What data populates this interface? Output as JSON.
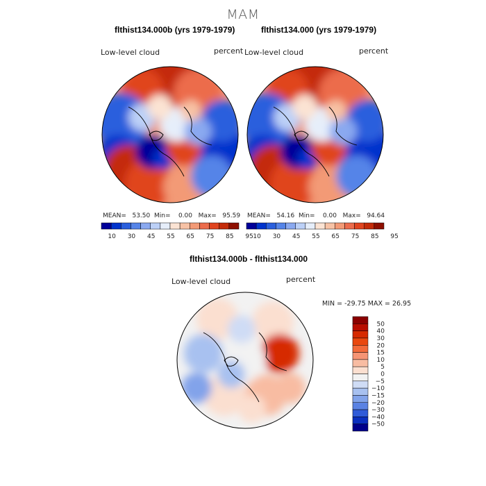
{
  "figure_title": "MAM",
  "panels": [
    {
      "title": "flthist134.000b (yrs 1979-1979)",
      "field_label": "Low-level cloud",
      "units": "percent",
      "stats": {
        "mean_label": "MEAN=",
        "mean": "53.50",
        "min_label": "Min=",
        "min": "0.00",
        "max_label": "Max=",
        "max": "95.59"
      }
    },
    {
      "title": "flthist134.000 (yrs 1979-1979)",
      "field_label": "Low-level cloud",
      "units": "percent",
      "stats": {
        "mean_label": "MEAN=",
        "mean": "54.16",
        "min_label": "Min=",
        "min": "0.00",
        "max_label": "Max=",
        "max": "94.64"
      }
    },
    {
      "title": "flthist134.000b - flthist134.000",
      "field_label": "Low-level cloud",
      "units": "percent",
      "stats_line": "MIN = -29.75 MAX =  26.95"
    }
  ],
  "chart_data": [
    {
      "type": "heatmap",
      "projection": "north-polar-stereographic",
      "title": "flthist134.000b (yrs 1979-1979)",
      "variable": "Low-level cloud",
      "units": "percent",
      "mean": 53.5,
      "min": 0.0,
      "max": 95.59,
      "colorbar": {
        "orientation": "horizontal",
        "levels": [
          10,
          30,
          45,
          55,
          65,
          75,
          85,
          95
        ],
        "colors": [
          "#000099",
          "#0033cc",
          "#2a5fdd",
          "#5584e8",
          "#8aa9f0",
          "#bcd0f7",
          "#e6eefa",
          "#fbe3d3",
          "#f7c2a5",
          "#f39a76",
          "#ec6c4c",
          "#e0441f",
          "#c42b09",
          "#8e0f00"
        ]
      }
    },
    {
      "type": "heatmap",
      "projection": "north-polar-stereographic",
      "title": "flthist134.000 (yrs 1979-1979)",
      "variable": "Low-level cloud",
      "units": "percent",
      "mean": 54.16,
      "min": 0.0,
      "max": 94.64,
      "colorbar": {
        "orientation": "horizontal",
        "levels": [
          10,
          30,
          45,
          55,
          65,
          75,
          85,
          95
        ],
        "colors": [
          "#000099",
          "#0033cc",
          "#2a5fdd",
          "#5584e8",
          "#8aa9f0",
          "#bcd0f7",
          "#e6eefa",
          "#fbe3d3",
          "#f7c2a5",
          "#f39a76",
          "#ec6c4c",
          "#e0441f",
          "#c42b09",
          "#8e0f00"
        ]
      }
    },
    {
      "type": "heatmap",
      "projection": "north-polar-stereographic",
      "title": "flthist134.000b - flthist134.000",
      "variable": "Low-level cloud",
      "units": "percent",
      "min": -29.75,
      "max": 26.95,
      "colorbar": {
        "orientation": "vertical",
        "levels": [
          50,
          40,
          30,
          20,
          15,
          10,
          5,
          0,
          -5,
          -10,
          -15,
          -20,
          -30,
          -40,
          -50
        ],
        "level_labels": [
          "50",
          "40",
          "30",
          "20",
          "15",
          "10",
          "5",
          "0",
          "−5",
          "−10",
          "−15",
          "−20",
          "−30",
          "−40",
          "−50"
        ],
        "colors": [
          "#8b0000",
          "#b80d00",
          "#d62a00",
          "#e9480f",
          "#f26a3a",
          "#f59474",
          "#f8bca2",
          "#fbdfd0",
          "#f2f2f2",
          "#cfdcf5",
          "#a8c1f0",
          "#82a3ea",
          "#5a82e3",
          "#2f5bd8",
          "#0a2fbf",
          "#00008b"
        ]
      }
    }
  ]
}
